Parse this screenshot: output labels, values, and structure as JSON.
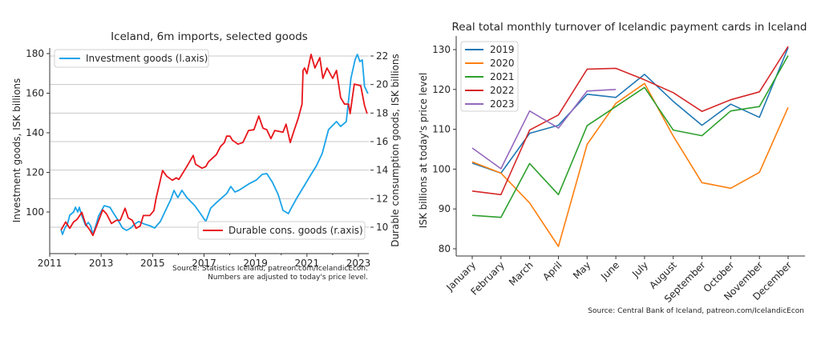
{
  "chart_data": [
    {
      "type": "line",
      "title": "Iceland, 6m imports, selected goods",
      "xlabel": "",
      "ylabel": "Investment goods, ISK billions",
      "y2label": "Durable consumption goods, ISK billions",
      "xlim": [
        2011,
        2023.6
      ],
      "ylim": [
        84,
        184
      ],
      "y2lim": [
        8.8,
        22.7
      ],
      "xticks": [
        "2011",
        "2013",
        "2015",
        "2017",
        "2019",
        "2021",
        "2023"
      ],
      "xtick_values": [
        2011,
        2013,
        2015,
        2017,
        2019,
        2021,
        2023
      ],
      "yticks": [
        "100",
        "120",
        "140",
        "160",
        "180"
      ],
      "ytick_values": [
        100,
        120,
        140,
        160,
        180
      ],
      "y2ticks": [
        "10",
        "12",
        "14",
        "16",
        "18",
        "20",
        "22"
      ],
      "y2tick_values": [
        10,
        12,
        14,
        16,
        18,
        20,
        22
      ],
      "grid": "horizontal at right-axis ticks",
      "source_lines": [
        "Source: Statistics Iceland, patreon.com/IcelandicEcon.",
        "Numbers are adjusted to today's price level."
      ],
      "series": [
        {
          "name": "Investment goods (l.axis)",
          "axis": "left",
          "color": "#1aa3e8",
          "legend": "upper-left",
          "points": [
            [
              2011.44,
              91.1
            ],
            [
              2011.5,
              88.7
            ],
            [
              2011.59,
              91.9
            ],
            [
              2011.69,
              93.9
            ],
            [
              2011.78,
              98.4
            ],
            [
              2011.93,
              100.0
            ],
            [
              2012.0,
              102.4
            ],
            [
              2012.09,
              100.0
            ],
            [
              2012.15,
              102.4
            ],
            [
              2012.25,
              98.0
            ],
            [
              2012.4,
              93.1
            ],
            [
              2012.5,
              94.7
            ],
            [
              2012.59,
              93.1
            ],
            [
              2012.68,
              88.7
            ],
            [
              2012.78,
              92.7
            ],
            [
              2012.9,
              98.0
            ],
            [
              2013.12,
              103.2
            ],
            [
              2013.34,
              102.4
            ],
            [
              2013.49,
              99.2
            ],
            [
              2013.65,
              96.0
            ],
            [
              2013.83,
              91.9
            ],
            [
              2013.99,
              90.7
            ],
            [
              2014.15,
              91.9
            ],
            [
              2014.3,
              93.9
            ],
            [
              2014.46,
              95.2
            ],
            [
              2014.68,
              93.9
            ],
            [
              2014.89,
              93.1
            ],
            [
              2015.08,
              91.9
            ],
            [
              2015.3,
              95.2
            ],
            [
              2015.52,
              101.2
            ],
            [
              2015.7,
              106.1
            ],
            [
              2015.83,
              110.9
            ],
            [
              2015.98,
              107.3
            ],
            [
              2016.14,
              110.9
            ],
            [
              2016.33,
              107.3
            ],
            [
              2016.64,
              103.2
            ],
            [
              2016.86,
              99.2
            ],
            [
              2017.07,
              95.2
            ],
            [
              2017.26,
              102.0
            ],
            [
              2017.42,
              104.0
            ],
            [
              2017.7,
              107.3
            ],
            [
              2017.88,
              109.3
            ],
            [
              2018.04,
              112.9
            ],
            [
              2018.2,
              110.1
            ],
            [
              2018.35,
              110.9
            ],
            [
              2018.73,
              114.1
            ],
            [
              2019.04,
              116.2
            ],
            [
              2019.26,
              119.0
            ],
            [
              2019.44,
              119.4
            ],
            [
              2019.66,
              115.0
            ],
            [
              2019.88,
              108.9
            ],
            [
              2020.07,
              100.8
            ],
            [
              2020.28,
              99.2
            ],
            [
              2020.44,
              103.2
            ],
            [
              2020.6,
              106.9
            ],
            [
              2020.84,
              112.1
            ],
            [
              2021.16,
              119.0
            ],
            [
              2021.37,
              123.4
            ],
            [
              2021.59,
              129.5
            ],
            [
              2021.84,
              141.6
            ],
            [
              2022.15,
              145.7
            ],
            [
              2022.31,
              143.2
            ],
            [
              2022.53,
              145.7
            ],
            [
              2022.71,
              167.5
            ],
            [
              2022.87,
              176.8
            ],
            [
              2022.96,
              179.6
            ],
            [
              2023.06,
              176.0
            ],
            [
              2023.15,
              176.8
            ],
            [
              2023.24,
              163.4
            ],
            [
              2023.37,
              159.8
            ]
          ]
        },
        {
          "name": "Durable cons. goods (r.axis)",
          "axis": "right",
          "color": "#e8141a",
          "legend": "lower-right",
          "points": [
            [
              2011.44,
              9.81
            ],
            [
              2011.62,
              10.37
            ],
            [
              2011.78,
              9.92
            ],
            [
              2011.93,
              10.37
            ],
            [
              2012.06,
              10.54
            ],
            [
              2012.25,
              11.04
            ],
            [
              2012.4,
              10.2
            ],
            [
              2012.56,
              9.81
            ],
            [
              2012.68,
              9.42
            ],
            [
              2012.81,
              10.03
            ],
            [
              2013.06,
              11.21
            ],
            [
              2013.21,
              10.93
            ],
            [
              2013.4,
              10.26
            ],
            [
              2013.59,
              10.48
            ],
            [
              2013.74,
              10.48
            ],
            [
              2013.93,
              11.33
            ],
            [
              2014.05,
              10.65
            ],
            [
              2014.21,
              10.48
            ],
            [
              2014.36,
              9.92
            ],
            [
              2014.52,
              10.09
            ],
            [
              2014.64,
              10.82
            ],
            [
              2014.89,
              10.82
            ],
            [
              2015.05,
              11.16
            ],
            [
              2015.14,
              12.06
            ],
            [
              2015.39,
              13.97
            ],
            [
              2015.55,
              13.57
            ],
            [
              2015.77,
              13.29
            ],
            [
              2015.92,
              13.46
            ],
            [
              2016.02,
              13.35
            ],
            [
              2016.33,
              14.25
            ],
            [
              2016.58,
              15.03
            ],
            [
              2016.67,
              14.42
            ],
            [
              2016.92,
              14.13
            ],
            [
              2017.07,
              14.25
            ],
            [
              2017.17,
              14.58
            ],
            [
              2017.48,
              15.09
            ],
            [
              2017.64,
              15.65
            ],
            [
              2017.79,
              15.93
            ],
            [
              2017.88,
              16.38
            ],
            [
              2018.01,
              16.38
            ],
            [
              2018.1,
              16.1
            ],
            [
              2018.32,
              15.82
            ],
            [
              2018.51,
              15.93
            ],
            [
              2018.73,
              16.78
            ],
            [
              2018.94,
              16.83
            ],
            [
              2019.13,
              17.79
            ],
            [
              2019.29,
              16.94
            ],
            [
              2019.44,
              16.83
            ],
            [
              2019.6,
              16.21
            ],
            [
              2019.75,
              16.78
            ],
            [
              2020.07,
              16.66
            ],
            [
              2020.19,
              17.22
            ],
            [
              2020.35,
              15.93
            ],
            [
              2020.5,
              16.78
            ],
            [
              2020.66,
              17.62
            ],
            [
              2020.81,
              18.63
            ],
            [
              2020.85,
              20.99
            ],
            [
              2020.91,
              21.16
            ],
            [
              2021.0,
              20.76
            ],
            [
              2021.16,
              22.11
            ],
            [
              2021.31,
              21.16
            ],
            [
              2021.5,
              21.89
            ],
            [
              2021.62,
              20.43
            ],
            [
              2021.78,
              21.16
            ],
            [
              2022.0,
              20.43
            ],
            [
              2022.15,
              20.99
            ],
            [
              2022.31,
              19.08
            ],
            [
              2022.46,
              18.63
            ],
            [
              2022.62,
              18.63
            ],
            [
              2022.68,
              17.96
            ],
            [
              2022.84,
              20.03
            ],
            [
              2023.09,
              19.92
            ],
            [
              2023.24,
              18.52
            ],
            [
              2023.34,
              17.96
            ]
          ]
        }
      ]
    },
    {
      "type": "line",
      "title": "Real total monthly turnover of Icelandic payment cards in Iceland",
      "xlabel": "",
      "ylabel": "ISK billions at today's price level",
      "ylim": [
        78.2,
        133.3
      ],
      "yticks": [
        "80",
        "90",
        "100",
        "110",
        "120",
        "130"
      ],
      "ytick_values": [
        80,
        90,
        100,
        110,
        120,
        130
      ],
      "grid": false,
      "legend": "upper-left",
      "categories": [
        "January",
        "February",
        "March",
        "April",
        "May",
        "June",
        "July",
        "August",
        "September",
        "October",
        "November",
        "December"
      ],
      "source": "Source: Central Bank of Iceland, patreon.com/IcelandicEcon",
      "series": [
        {
          "name": "2019",
          "color": "#1f77b4",
          "values": [
            101.5,
            99.0,
            109.0,
            111.0,
            118.8,
            118.0,
            123.8,
            117.0,
            111.0,
            116.3,
            113.0,
            130.5
          ]
        },
        {
          "name": "2020",
          "color": "#ff7f0e",
          "values": [
            101.8,
            99.0,
            91.5,
            80.6,
            106.2,
            116.5,
            121.5,
            108.3,
            96.6,
            95.2,
            99.2,
            115.5
          ]
        },
        {
          "name": "2021",
          "color": "#2ca02c",
          "values": [
            88.4,
            87.9,
            101.4,
            93.6,
            110.9,
            115.7,
            120.5,
            109.8,
            108.4,
            114.6,
            115.7,
            128.5
          ]
        },
        {
          "name": "2022",
          "color": "#d62728",
          "values": [
            94.5,
            93.6,
            109.8,
            113.6,
            125.1,
            125.3,
            122.4,
            119.2,
            114.5,
            117.4,
            119.4,
            130.8
          ]
        },
        {
          "name": "2023",
          "color": "#9467bd",
          "values": [
            105.3,
            100.1,
            114.6,
            110.3,
            119.6,
            120.0
          ]
        }
      ]
    }
  ]
}
